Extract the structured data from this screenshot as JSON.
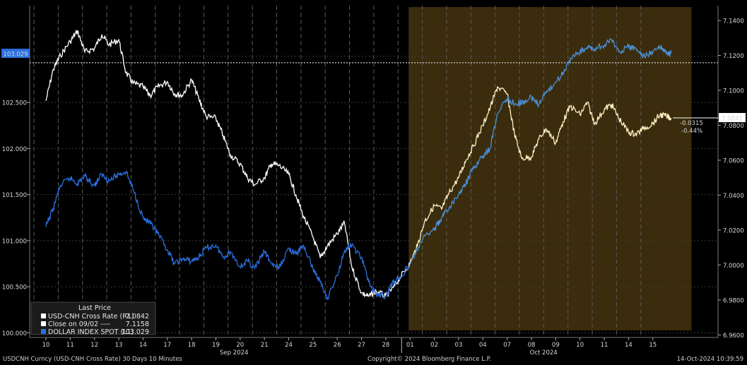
{
  "chart_data": {
    "type": "line",
    "x_unit": "trading day index (0 = Sep 10 2024)",
    "x_tick_labels": [
      "10",
      "11",
      "12",
      "13",
      "14",
      "17",
      "18",
      "19",
      "20",
      "21",
      "24",
      "25",
      "26",
      "27",
      "28",
      "01",
      "02",
      "03",
      "04",
      "07",
      "08",
      "09",
      "10",
      "11",
      "14",
      "15"
    ],
    "x_tick_positions": [
      0,
      1,
      2,
      3,
      4,
      5,
      6,
      7,
      8,
      9,
      10,
      11,
      12,
      13,
      14,
      15,
      16,
      17,
      18,
      19,
      20,
      21,
      22,
      23,
      24,
      25
    ],
    "month_labels": [
      {
        "label": "Sep 2024",
        "at": 7.75
      },
      {
        "label": "Oct 2024",
        "at": 20.5
      }
    ],
    "shaded_region": [
      15.0,
      27.0
    ],
    "left_axis": {
      "ylim": [
        99.95,
        103.55
      ],
      "ticks": [
        100.0,
        100.5,
        101.0,
        101.5,
        102.0,
        102.5,
        103.0
      ],
      "tick_labels": [
        "100.000",
        "100.500",
        "101.000",
        "101.500",
        "102.000",
        "102.500",
        ""
      ]
    },
    "right_axis": {
      "ylim": [
        6.9585,
        7.1485
      ],
      "ticks": [
        6.96,
        6.98,
        7.0,
        7.02,
        7.04,
        7.06,
        7.08,
        7.1,
        7.12,
        7.14
      ],
      "tick_labels": [
        "6.9600",
        "6.9800",
        "7.0000",
        "7.0200",
        "7.0400",
        "7.0600",
        "7.0800",
        "7.1000",
        "7.1200",
        "7.1400"
      ]
    },
    "series": [
      {
        "name": "USD-CNH Cross Rate  (R1)",
        "axis": "right",
        "color": "#ffffff",
        "color_shaded": "#fff3c4",
        "x": [
          0,
          0.3,
          0.6,
          1.0,
          1.3,
          1.6,
          2.0,
          2.3,
          2.6,
          3.0,
          3.3,
          3.6,
          4.0,
          4.3,
          4.6,
          5.0,
          5.3,
          5.6,
          6.0,
          6.3,
          6.6,
          7.0,
          7.3,
          7.6,
          8.0,
          8.3,
          8.6,
          9.0,
          9.3,
          9.6,
          10.0,
          10.3,
          10.6,
          11.0,
          11.3,
          11.6,
          12.0,
          12.3,
          12.6,
          13.0,
          13.3,
          13.6,
          14.0,
          14.3,
          14.6,
          15.0,
          15.3,
          15.6,
          16.0,
          16.3,
          16.6,
          17.0,
          17.3,
          17.6,
          18.0,
          18.3,
          18.6,
          19.0,
          19.3,
          19.6,
          20.0,
          20.3,
          20.6,
          21.0,
          21.3,
          21.6,
          22.0,
          22.3,
          22.6,
          23.0,
          23.3,
          23.6,
          24.0,
          24.3,
          24.6,
          25.0,
          25.3,
          25.6,
          25.75
        ],
        "values": [
          7.094,
          7.112,
          7.12,
          7.128,
          7.134,
          7.122,
          7.124,
          7.132,
          7.126,
          7.129,
          7.11,
          7.104,
          7.102,
          7.097,
          7.102,
          7.105,
          7.098,
          7.097,
          7.106,
          7.095,
          7.085,
          7.084,
          7.074,
          7.063,
          7.058,
          7.05,
          7.046,
          7.05,
          7.058,
          7.057,
          7.052,
          7.04,
          7.028,
          7.016,
          7.004,
          7.011,
          7.018,
          7.024,
          6.999,
          6.984,
          6.982,
          6.985,
          6.982,
          6.987,
          6.993,
          7.001,
          7.011,
          7.025,
          7.034,
          7.032,
          7.041,
          7.05,
          7.06,
          7.068,
          7.08,
          7.09,
          7.102,
          7.098,
          7.075,
          7.061,
          7.062,
          7.072,
          7.078,
          7.07,
          7.082,
          7.091,
          7.086,
          7.093,
          7.081,
          7.089,
          7.092,
          7.084,
          7.076,
          7.075,
          7.078,
          7.081,
          7.086,
          7.085,
          7.0842
        ]
      },
      {
        "name": "DOLLAR INDEX SPOT  (L1)",
        "axis": "left",
        "color": "#2a6fe0",
        "color_shaded": "#4a90d9",
        "x": [
          0,
          0.3,
          0.6,
          1.0,
          1.3,
          1.6,
          2.0,
          2.3,
          2.6,
          3.0,
          3.3,
          3.6,
          4.0,
          4.3,
          4.6,
          5.0,
          5.3,
          5.6,
          6.0,
          6.3,
          6.6,
          7.0,
          7.3,
          7.6,
          8.0,
          8.3,
          8.6,
          9.0,
          9.3,
          9.6,
          10.0,
          10.3,
          10.6,
          11.0,
          11.3,
          11.6,
          12.0,
          12.3,
          12.6,
          13.0,
          13.3,
          13.6,
          14.0,
          14.3,
          14.6,
          15.0,
          15.3,
          15.6,
          16.0,
          16.3,
          16.6,
          17.0,
          17.3,
          17.6,
          18.0,
          18.3,
          18.6,
          19.0,
          19.3,
          19.6,
          20.0,
          20.3,
          20.6,
          21.0,
          21.3,
          21.6,
          22.0,
          22.3,
          22.6,
          23.0,
          23.3,
          23.6,
          24.0,
          24.3,
          24.6,
          25.0,
          25.3,
          25.6,
          25.75
        ],
        "values": [
          101.15,
          101.35,
          101.6,
          101.68,
          101.62,
          101.7,
          101.6,
          101.72,
          101.65,
          101.72,
          101.75,
          101.55,
          101.25,
          101.18,
          101.08,
          100.9,
          100.75,
          100.8,
          100.78,
          100.82,
          100.92,
          100.95,
          100.82,
          100.88,
          100.72,
          100.78,
          100.7,
          100.88,
          100.75,
          100.7,
          100.92,
          100.85,
          100.95,
          100.7,
          100.55,
          100.38,
          100.62,
          100.9,
          100.95,
          100.82,
          100.55,
          100.42,
          100.4,
          100.55,
          100.6,
          100.75,
          100.9,
          101.05,
          101.12,
          101.25,
          101.35,
          101.5,
          101.62,
          101.78,
          101.92,
          102.0,
          102.38,
          102.55,
          102.48,
          102.5,
          102.55,
          102.48,
          102.6,
          102.72,
          102.82,
          102.98,
          103.05,
          103.1,
          103.08,
          103.12,
          103.18,
          103.05,
          103.1,
          103.08,
          103.0,
          103.05,
          103.1,
          103.02,
          103.029
        ]
      }
    ],
    "reference_line": {
      "name": "Close on 09/02 ----",
      "axis": "right",
      "value": 7.1158,
      "color": "#ffffff"
    },
    "legend": {
      "placement": "bottom-left",
      "title": "Last Price",
      "rows": [
        {
          "label": "USD-CNH Cross Rate  (R1)",
          "value": "7.0842",
          "swatch": "#ffffff"
        },
        {
          "label": "Close on 09/02 ----",
          "value": "7.1158",
          "swatch": "#ffffff"
        },
        {
          "label": "DOLLAR INDEX SPOT  (L1)",
          "value": "103.029",
          "swatch": "#2a6fe0"
        }
      ]
    },
    "badges": {
      "left_last": "103.029",
      "right_last": "7.0842",
      "change_abs": "-0.0315",
      "change_pct": "-0.44%"
    },
    "grid": true
  },
  "footer": {
    "left": "USDCNH Curncy (USD-CNH Cross Rate) 30 Days 10 Minutes",
    "center": "Copyright© 2024 Bloomberg Finance L.P.",
    "right": "14-Oct-2024 10:39:59"
  }
}
